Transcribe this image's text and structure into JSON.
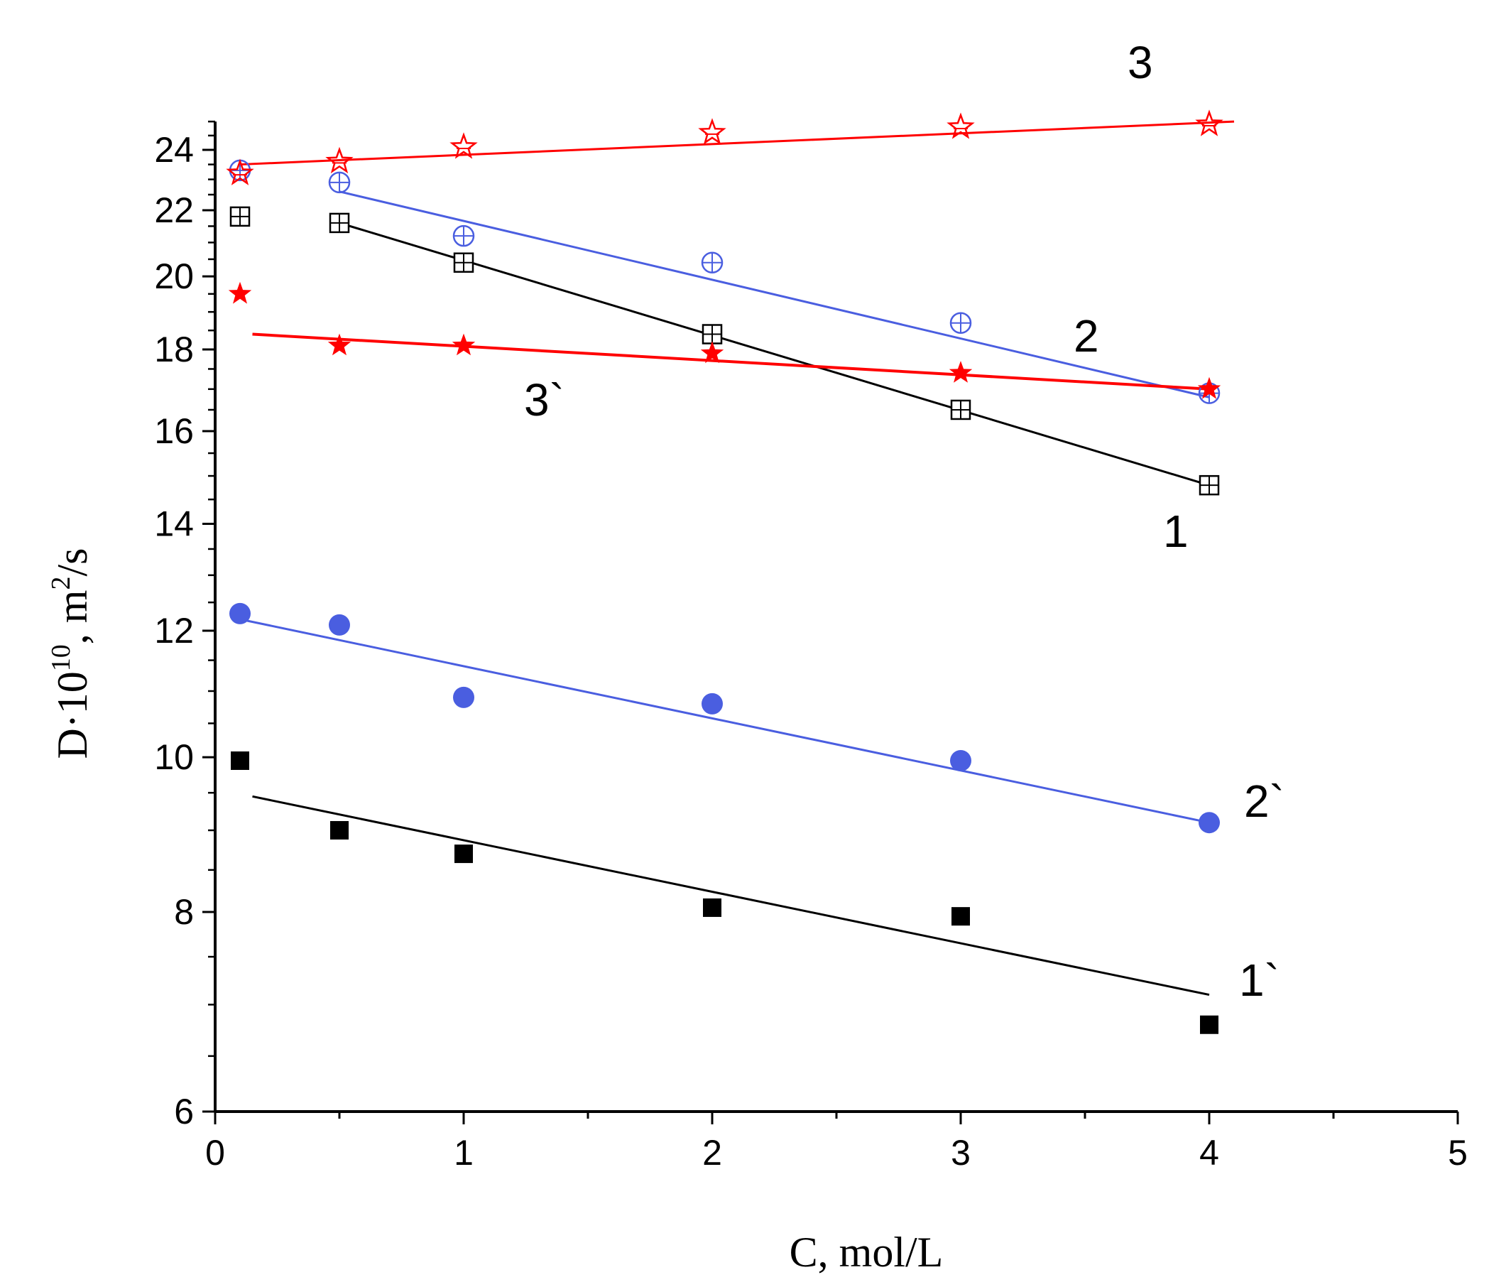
{
  "chart_data": {
    "type": "scatter",
    "xlabel": "C, mol/L",
    "ylabel": {
      "base": "D·10",
      "exp": "10",
      "mid": ", m",
      "exp2": "2",
      "tail": "/s"
    },
    "xlim": [
      0,
      5
    ],
    "ylim": [
      6,
      25
    ],
    "y_scale": "log",
    "x_ticks": [
      0,
      1,
      2,
      3,
      4,
      5
    ],
    "y_ticks": [
      6,
      8,
      10,
      12,
      14,
      16,
      18,
      20,
      22,
      24
    ],
    "series": [
      {
        "name": "1",
        "label": "1",
        "color": "#000000",
        "marker": "square-plus",
        "x": [
          0.1,
          0.5,
          1,
          2,
          3,
          4
        ],
        "y": [
          21.8,
          21.6,
          20.4,
          18.4,
          16.5,
          14.8
        ],
        "fit": {
          "x": [
            0.5,
            4.0
          ],
          "y": [
            21.6,
            14.8
          ]
        }
      },
      {
        "name": "2",
        "label": "2",
        "color": "#4a5ee0",
        "marker": "circle-plus",
        "x": [
          0.1,
          0.5,
          1,
          2,
          3,
          4
        ],
        "y": [
          23.3,
          22.9,
          21.2,
          20.4,
          18.7,
          16.9
        ],
        "fit": {
          "x": [
            0.5,
            4.0
          ],
          "y": [
            22.6,
            16.8
          ]
        }
      },
      {
        "name": "3",
        "label": "3",
        "color": "#ff0000",
        "marker": "star-open",
        "x": [
          0.1,
          0.5,
          1,
          2,
          3,
          4
        ],
        "y": [
          23.2,
          23.6,
          24.1,
          24.6,
          24.8,
          24.9
        ],
        "fit": {
          "x": [
            0.1,
            4.1
          ],
          "y": [
            23.5,
            25.0
          ]
        }
      },
      {
        "name": "1`",
        "label": "1`",
        "color": "#000000",
        "marker": "square-filled",
        "x": [
          0.1,
          0.5,
          1,
          2,
          3,
          4
        ],
        "y": [
          9.95,
          9.0,
          8.7,
          8.05,
          7.95,
          6.8
        ],
        "fit": {
          "x": [
            0.15,
            4.0
          ],
          "y": [
            9.45,
            7.1
          ]
        }
      },
      {
        "name": "2`",
        "label": "2`",
        "color": "#4a5ee0",
        "marker": "circle-filled",
        "x": [
          0.1,
          0.5,
          1,
          2,
          3,
          4
        ],
        "y": [
          12.3,
          12.1,
          10.9,
          10.8,
          9.95,
          9.1
        ],
        "fit": {
          "x": [
            0.1,
            4.0
          ],
          "y": [
            12.2,
            9.1
          ]
        }
      },
      {
        "name": "3`",
        "label": "3`",
        "color": "#ff0000",
        "marker": "star-filled",
        "x": [
          0.1,
          0.5,
          1,
          2,
          3,
          4
        ],
        "y": [
          19.5,
          18.1,
          18.1,
          17.9,
          17.4,
          17.0
        ],
        "fit": {
          "x": [
            0.15,
            4.0
          ],
          "y": [
            18.4,
            17.0
          ]
        }
      }
    ]
  }
}
